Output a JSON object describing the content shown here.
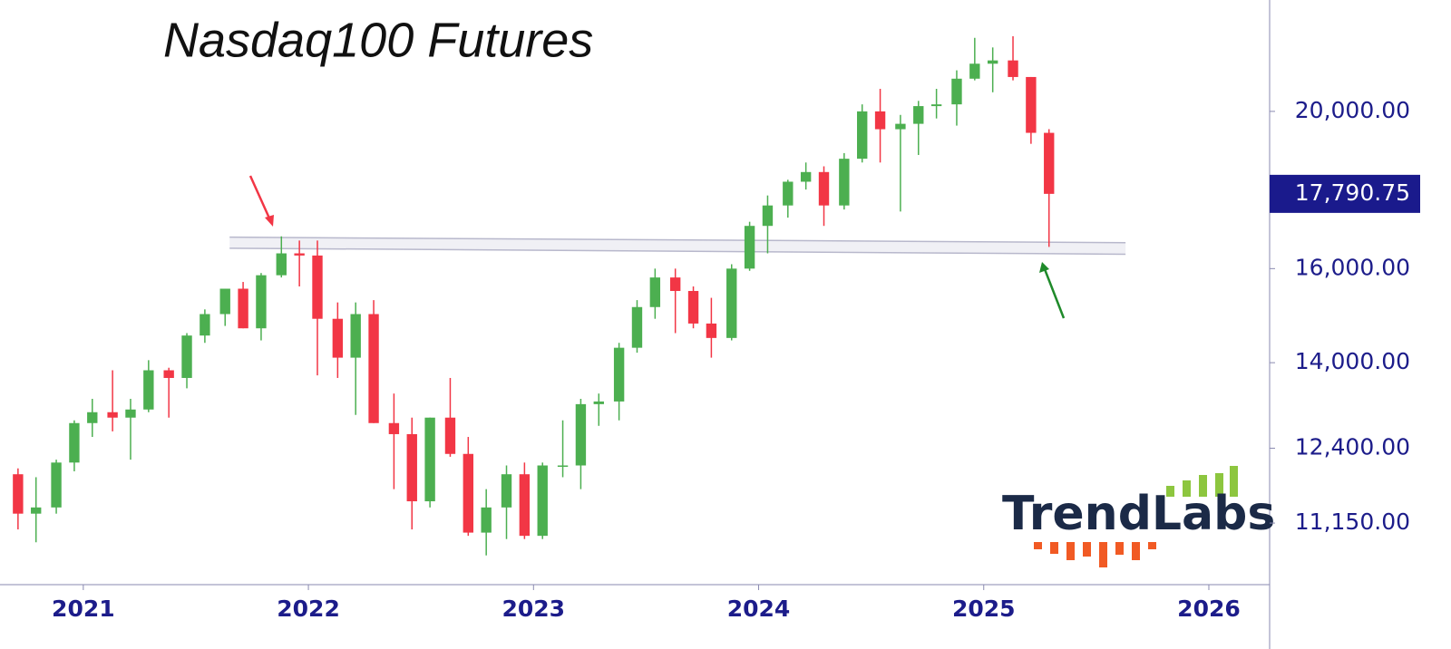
{
  "chart_data": {
    "type": "candlestick",
    "title": "Nasdaq100 Futures",
    "log_scale": true,
    "xlim": [
      2020.63,
      2026.27
    ],
    "ylim": [
      10217,
      23425
    ],
    "xticks": [
      2021,
      2022,
      2023,
      2024,
      2025,
      2026
    ],
    "yticks": [
      {
        "value": 11150,
        "label": "11,150.00"
      },
      {
        "value": 12400,
        "label": "12,400.00"
      },
      {
        "value": 14000,
        "label": "14,000.00"
      },
      {
        "value": 16000,
        "label": "16,000.00"
      },
      {
        "value": 20000,
        "label": "20,000.00"
      }
    ],
    "up_color": "#4caf50",
    "down_color": "#f23645",
    "x": [
      2020.71,
      2020.79,
      2020.88,
      2020.96,
      2021.04,
      2021.13,
      2021.21,
      2021.29,
      2021.38,
      2021.46,
      2021.54,
      2021.63,
      2021.71,
      2021.79,
      2021.88,
      2021.96,
      2022.04,
      2022.13,
      2022.21,
      2022.29,
      2022.38,
      2022.46,
      2022.54,
      2022.63,
      2022.71,
      2022.79,
      2022.88,
      2022.96,
      2023.04,
      2023.13,
      2023.21,
      2023.29,
      2023.38,
      2023.46,
      2023.54,
      2023.63,
      2023.71,
      2023.79,
      2023.88,
      2023.96,
      2024.04,
      2024.13,
      2024.21,
      2024.29,
      2024.38,
      2024.46,
      2024.54,
      2024.63,
      2024.71,
      2024.79,
      2024.88,
      2024.96,
      2025.04,
      2025.13,
      2025.21,
      2025.29
    ],
    "open": [
      11950,
      11300,
      11400,
      12150,
      12850,
      13050,
      12950,
      13100,
      13850,
      13700,
      14550,
      15000,
      15550,
      14700,
      15850,
      16350,
      16300,
      14900,
      14100,
      15000,
      12850,
      12650,
      11500,
      12950,
      12300,
      11000,
      11400,
      11950,
      10950,
      12100,
      12100,
      13200,
      13250,
      14300,
      15150,
      15800,
      15500,
      14800,
      14500,
      16000,
      17000,
      17500,
      18100,
      18350,
      17500,
      18700,
      20000,
      19500,
      19650,
      20150,
      20200,
      20950,
      21400,
      21500,
      21000,
      19400
    ],
    "high": [
      12050,
      11900,
      12200,
      12900,
      13300,
      13850,
      13300,
      14050,
      13900,
      14600,
      15100,
      15550,
      15700,
      15900,
      16750,
      16650,
      16650,
      15250,
      15250,
      15300,
      13400,
      12950,
      12950,
      13700,
      12600,
      11700,
      12100,
      12150,
      12150,
      12900,
      13300,
      13400,
      14400,
      15300,
      16000,
      16000,
      15600,
      15350,
      16100,
      17100,
      17750,
      18150,
      18600,
      18500,
      18850,
      20200,
      20650,
      19900,
      20300,
      20650,
      21200,
      22200,
      21900,
      22250,
      21000,
      19500
    ],
    "low": [
      11050,
      10850,
      11300,
      12000,
      12600,
      12700,
      12200,
      13050,
      12950,
      13500,
      14400,
      14750,
      14700,
      14450,
      15800,
      15600,
      13750,
      13700,
      13000,
      12850,
      11700,
      11050,
      11400,
      12250,
      10950,
      10650,
      10900,
      10900,
      10900,
      11900,
      11700,
      12800,
      12900,
      14200,
      14900,
      14600,
      14700,
      14100,
      14450,
      15950,
      16350,
      17200,
      17900,
      17000,
      17400,
      18600,
      18600,
      17350,
      18800,
      19800,
      19600,
      20900,
      20550,
      20900,
      19100,
      16500
    ],
    "close": [
      11300,
      11400,
      12150,
      12850,
      13050,
      12950,
      13100,
      13850,
      13700,
      14550,
      15000,
      15550,
      14700,
      15850,
      16350,
      16300,
      14900,
      14100,
      15000,
      12850,
      12650,
      11500,
      12950,
      12300,
      11000,
      11400,
      11950,
      10950,
      12100,
      12100,
      13200,
      13250,
      14300,
      15150,
      15800,
      15500,
      14800,
      14500,
      16000,
      17000,
      17500,
      18100,
      18350,
      17500,
      18700,
      20000,
      19500,
      19650,
      20150,
      20200,
      20950,
      21400,
      21500,
      21000,
      19400,
      17790.75
    ],
    "last_price": 17790.75,
    "last_price_label": "17,790.75",
    "support_zone": {
      "x": [
        2021.65,
        2025.63
      ],
      "upper": [
        16730,
        16600
      ],
      "lower": [
        16470,
        16330
      ]
    },
    "watermark": "TrendLabs"
  }
}
